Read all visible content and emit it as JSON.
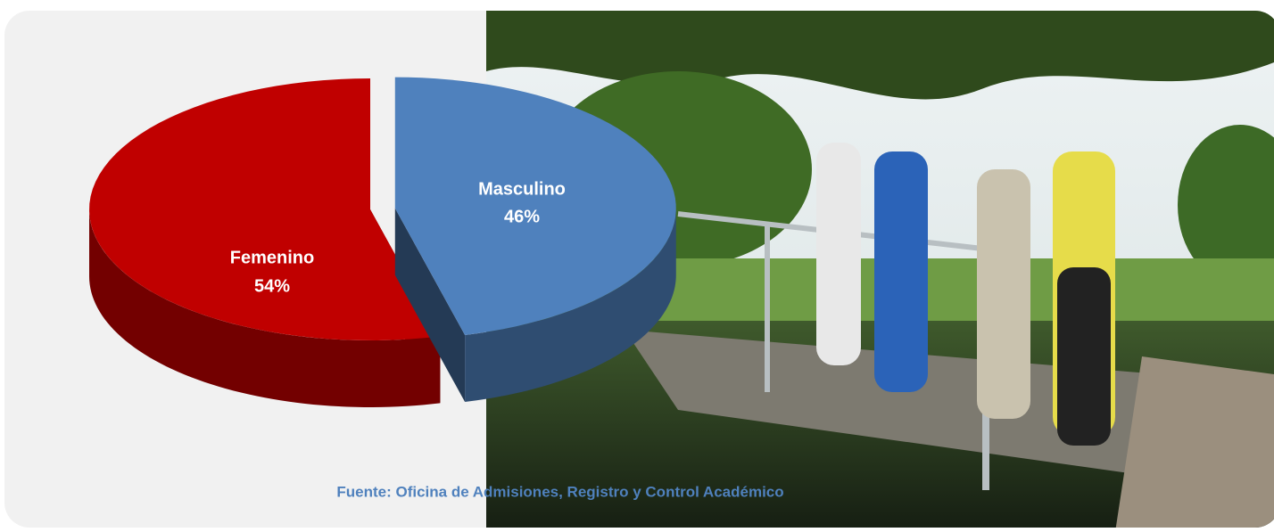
{
  "chart_data": {
    "type": "pie3d",
    "categories": [
      "Femenino",
      "Masculino"
    ],
    "values": [
      54,
      46
    ],
    "value_labels": [
      "54%",
      "46%"
    ],
    "colors": [
      "#c00000",
      "#4f81bd"
    ],
    "source": "Fuente: Oficina de Admisiones, Registro y Control Académico"
  }
}
